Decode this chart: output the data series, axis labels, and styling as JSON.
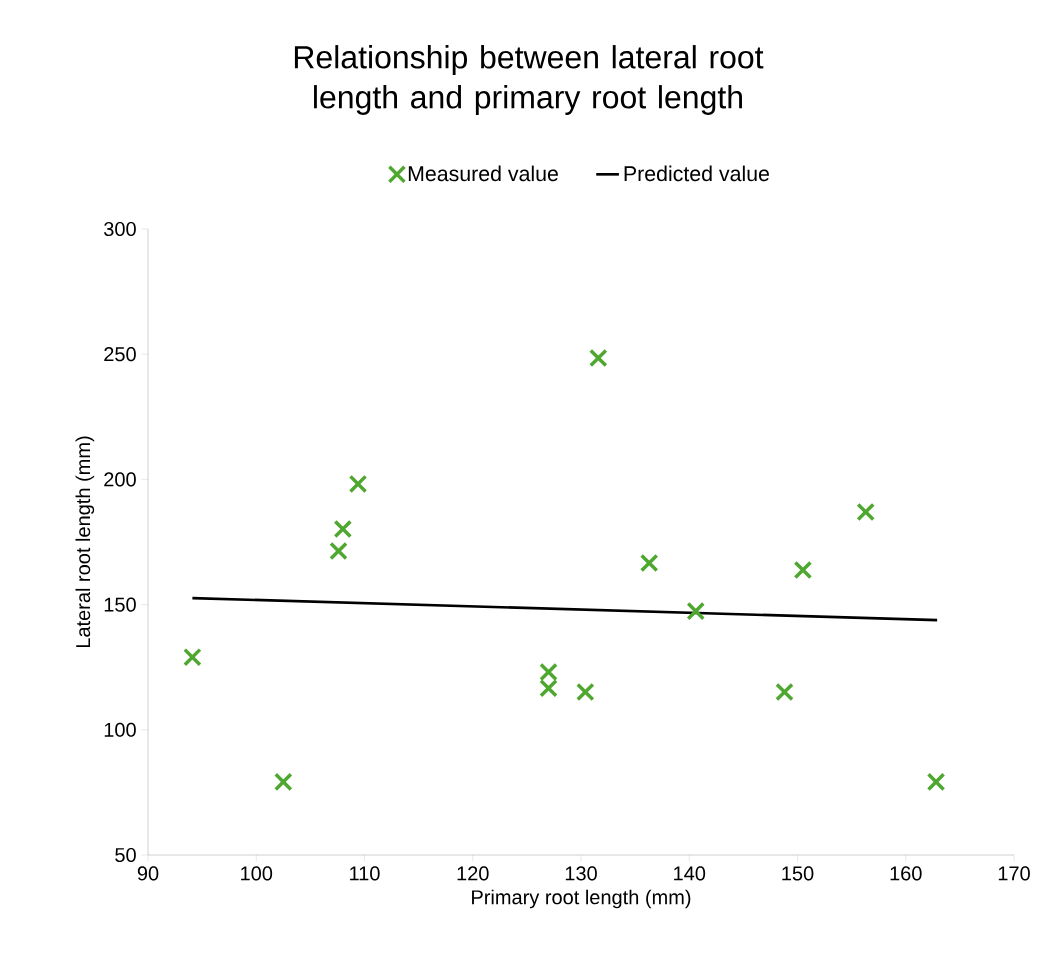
{
  "chart_data": {
    "type": "scatter",
    "title": "Relationship between lateral root length and primary root length",
    "xlabel": "Primary root length (mm)",
    "ylabel": "Lateral root length (mm)",
    "xlim": [
      90,
      170
    ],
    "xticks": [
      90,
      100,
      110,
      120,
      130,
      140,
      150,
      160,
      170
    ],
    "ylim": [
      50,
      300
    ],
    "yticks": [
      50,
      100,
      150,
      200,
      250,
      300
    ],
    "legend": "top",
    "grid": false,
    "series": [
      {
        "name": "Measured value",
        "marker": "cross",
        "color": "#4ea72e",
        "x": [
          94.1,
          102.5,
          107.6,
          108.0,
          109.4,
          127.0,
          127.0,
          130.4,
          131.6,
          136.3,
          140.6,
          148.8,
          150.5,
          156.3,
          162.8
        ],
        "values": [
          129.0,
          79.2,
          171.4,
          180.2,
          198.2,
          123.1,
          116.6,
          115.1,
          248.5,
          166.6,
          147.4,
          115.1,
          163.8,
          187.0,
          79.2
        ]
      },
      {
        "name": "Predicted value",
        "type": "line",
        "marker": "none",
        "color": "#000000",
        "x": [
          94.1,
          162.9
        ],
        "values": [
          152.6,
          143.8
        ]
      }
    ]
  }
}
